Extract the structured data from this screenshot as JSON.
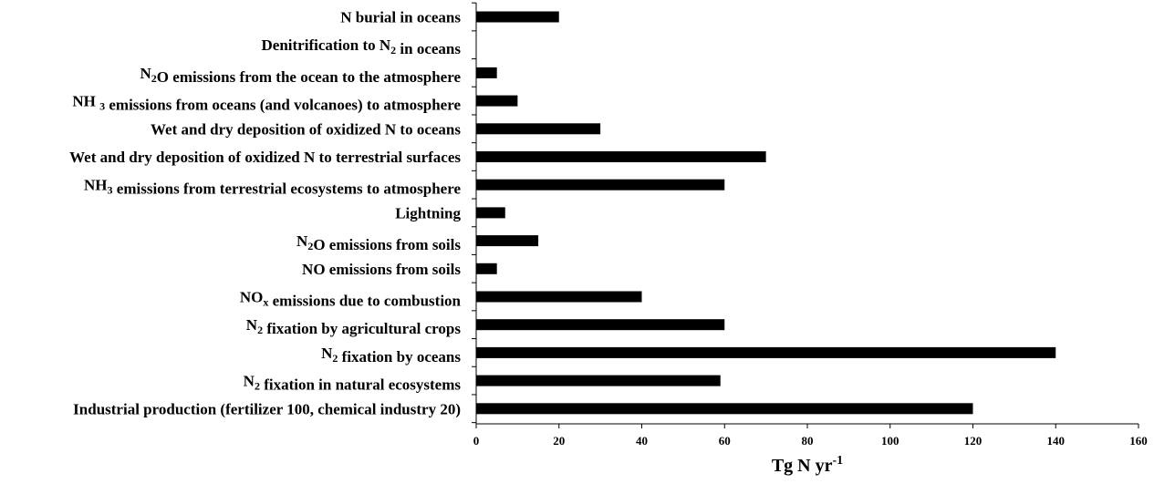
{
  "chart_data": {
    "type": "bar",
    "orientation": "horizontal",
    "categories": [
      {
        "segments": [
          {
            "t": "N burial in oceans"
          }
        ]
      },
      {
        "segments": [
          {
            "t": "Denitrification to N"
          },
          {
            "t": "2",
            "sub": true
          },
          {
            "t": " in oceans"
          }
        ]
      },
      {
        "segments": [
          {
            "t": "N"
          },
          {
            "t": "2",
            "sub": true
          },
          {
            "t": "O emissions from the ocean to the atmosphere"
          }
        ]
      },
      {
        "segments": [
          {
            "t": "NH "
          },
          {
            "t": "3",
            "sub": true
          },
          {
            "t": " emissions from oceans (and volcanoes) to atmosphere"
          }
        ]
      },
      {
        "segments": [
          {
            "t": "Wet and dry deposition of oxidized N to oceans"
          }
        ]
      },
      {
        "segments": [
          {
            "t": "Wet and dry deposition of oxidized N to terrestrial surfaces"
          }
        ]
      },
      {
        "segments": [
          {
            "t": "NH"
          },
          {
            "t": "3",
            "sub": true
          },
          {
            "t": " emissions from terrestrial ecosystems to atmosphere"
          }
        ]
      },
      {
        "segments": [
          {
            "t": "Lightning"
          }
        ]
      },
      {
        "segments": [
          {
            "t": "N"
          },
          {
            "t": "2",
            "sub": true
          },
          {
            "t": "O emissions from soils"
          }
        ]
      },
      {
        "segments": [
          {
            "t": "NO emissions from soils"
          }
        ]
      },
      {
        "segments": [
          {
            "t": "NO"
          },
          {
            "t": "x",
            "sub": true
          },
          {
            "t": " emissions due to combustion"
          }
        ]
      },
      {
        "segments": [
          {
            "t": "N"
          },
          {
            "t": "2",
            "sub": true
          },
          {
            "t": " fixation by agricultural crops"
          }
        ]
      },
      {
        "segments": [
          {
            "t": "N"
          },
          {
            "t": "2",
            "sub": true
          },
          {
            "t": " fixation by oceans"
          }
        ]
      },
      {
        "segments": [
          {
            "t": "N"
          },
          {
            "t": "2",
            "sub": true
          },
          {
            "t": " fixation in natural ecosystems"
          }
        ]
      },
      {
        "segments": [
          {
            "t": "Industrial production (fertilizer 100, chemical industry 20)"
          }
        ]
      }
    ],
    "values": [
      20,
      0,
      5,
      10,
      30,
      70,
      60,
      7,
      15,
      5,
      40,
      60,
      140,
      59,
      120
    ],
    "xlim": [
      0,
      160
    ],
    "xticks": [
      "0",
      "20",
      "40",
      "60",
      "80",
      "100",
      "120",
      "140",
      "160"
    ],
    "xlabel": {
      "base": "Tg N yr",
      "sup": "-1"
    },
    "bar_color": "#000000",
    "grid": false,
    "legend": false
  }
}
